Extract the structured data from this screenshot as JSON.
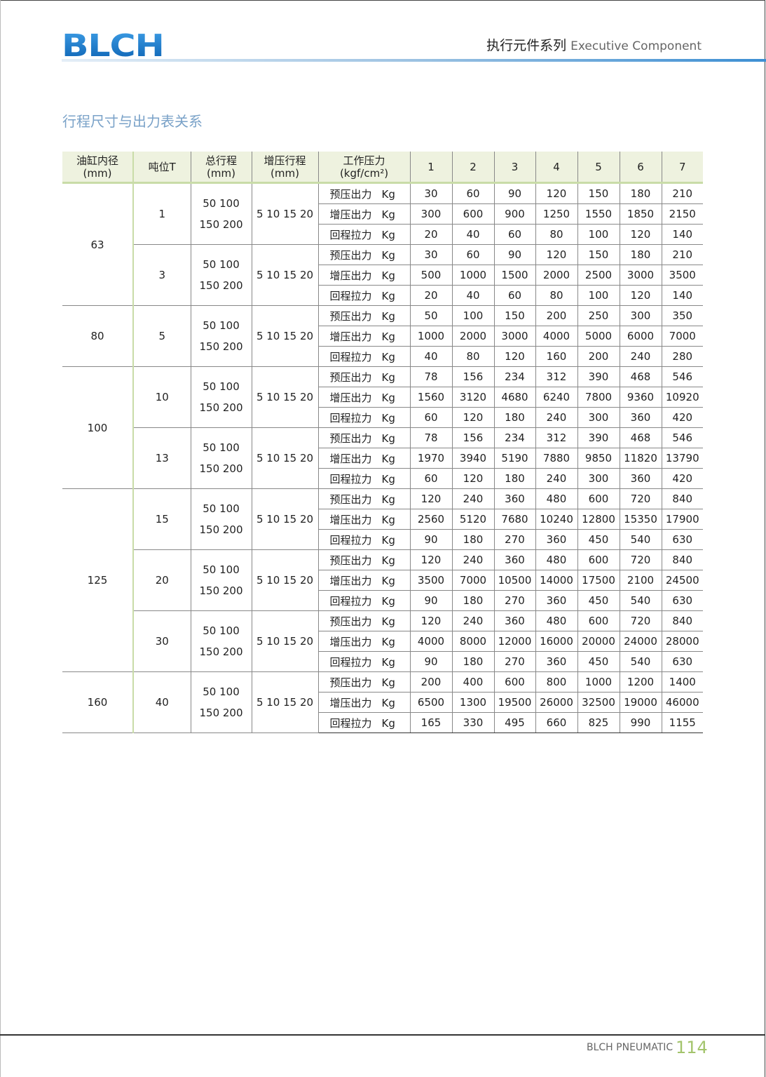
{
  "header": {
    "logo_text": "BLCH",
    "title_cn": "执行元件系列",
    "title_en": "Executive Component"
  },
  "section_title": "行程尺寸与出力表关系",
  "table": {
    "headers": [
      {
        "line1": "油缸内径",
        "line2": "(mm)"
      },
      {
        "line1": "吨位T",
        "line2": ""
      },
      {
        "line1": "总行程",
        "line2": "(mm)"
      },
      {
        "line1": "增压行程",
        "line2": "(mm)"
      },
      {
        "line1": "工作压力",
        "line2": "(kgf/cm²)"
      },
      {
        "line1": "1"
      },
      {
        "line1": "2"
      },
      {
        "line1": "3"
      },
      {
        "line1": "4"
      },
      {
        "line1": "5"
      },
      {
        "line1": "6"
      },
      {
        "line1": "7"
      }
    ],
    "row_labels": [
      "预压出力",
      "增压出力",
      "回程拉力"
    ],
    "unit": "Kg",
    "groups": [
      {
        "bore": "63",
        "tons": [
          {
            "ton": "1",
            "stroke1": "50 100",
            "stroke2": "150 200",
            "boost": "5 10 15 20",
            "rows": [
              [
                "30",
                "60",
                "90",
                "120",
                "150",
                "180",
                "210"
              ],
              [
                "300",
                "600",
                "900",
                "1250",
                "1550",
                "1850",
                "2150"
              ],
              [
                "20",
                "40",
                "60",
                "80",
                "100",
                "120",
                "140"
              ]
            ]
          },
          {
            "ton": "3",
            "stroke1": "50 100",
            "stroke2": "150 200",
            "boost": "5 10 15 20",
            "rows": [
              [
                "30",
                "60",
                "90",
                "120",
                "150",
                "180",
                "210"
              ],
              [
                "500",
                "1000",
                "1500",
                "2000",
                "2500",
                "3000",
                "3500"
              ],
              [
                "20",
                "40",
                "60",
                "80",
                "100",
                "120",
                "140"
              ]
            ]
          }
        ]
      },
      {
        "bore": "80",
        "tons": [
          {
            "ton": "5",
            "stroke1": "50 100",
            "stroke2": "150 200",
            "boost": "5 10 15 20",
            "rows": [
              [
                "50",
                "100",
                "150",
                "200",
                "250",
                "300",
                "350"
              ],
              [
                "1000",
                "2000",
                "3000",
                "4000",
                "5000",
                "6000",
                "7000"
              ],
              [
                "40",
                "80",
                "120",
                "160",
                "200",
                "240",
                "280"
              ]
            ]
          }
        ]
      },
      {
        "bore": "100",
        "tons": [
          {
            "ton": "10",
            "stroke1": "50 100",
            "stroke2": "150 200",
            "boost": "5 10 15 20",
            "rows": [
              [
                "78",
                "156",
                "234",
                "312",
                "390",
                "468",
                "546"
              ],
              [
                "1560",
                "3120",
                "4680",
                "6240",
                "7800",
                "9360",
                "10920"
              ],
              [
                "60",
                "120",
                "180",
                "240",
                "300",
                "360",
                "420"
              ]
            ]
          },
          {
            "ton": "13",
            "stroke1": "50 100",
            "stroke2": "150 200",
            "boost": "5 10 15 20",
            "rows": [
              [
                "78",
                "156",
                "234",
                "312",
                "390",
                "468",
                "546"
              ],
              [
                "1970",
                "3940",
                "5190",
                "7880",
                "9850",
                "11820",
                "13790"
              ],
              [
                "60",
                "120",
                "180",
                "240",
                "300",
                "360",
                "420"
              ]
            ]
          }
        ]
      },
      {
        "bore": "125",
        "tons": [
          {
            "ton": "15",
            "stroke1": "50 100",
            "stroke2": "150 200",
            "boost": "5 10 15 20",
            "rows": [
              [
                "120",
                "240",
                "360",
                "480",
                "600",
                "720",
                "840"
              ],
              [
                "2560",
                "5120",
                "7680",
                "10240",
                "12800",
                "15350",
                "17900"
              ],
              [
                "90",
                "180",
                "270",
                "360",
                "450",
                "540",
                "630"
              ]
            ]
          },
          {
            "ton": "20",
            "stroke1": "50 100",
            "stroke2": "150 200",
            "boost": "5 10 15 20",
            "rows": [
              [
                "120",
                "240",
                "360",
                "480",
                "600",
                "720",
                "840"
              ],
              [
                "3500",
                "7000",
                "10500",
                "14000",
                "17500",
                "2100",
                "24500"
              ],
              [
                "90",
                "180",
                "270",
                "360",
                "450",
                "540",
                "630"
              ]
            ]
          },
          {
            "ton": "30",
            "stroke1": "50 100",
            "stroke2": "150 200",
            "boost": "5 10 15 20",
            "rows": [
              [
                "120",
                "240",
                "360",
                "480",
                "600",
                "720",
                "840"
              ],
              [
                "4000",
                "8000",
                "12000",
                "16000",
                "20000",
                "24000",
                "28000"
              ],
              [
                "90",
                "180",
                "270",
                "360",
                "450",
                "540",
                "630"
              ]
            ]
          }
        ]
      },
      {
        "bore": "160",
        "tons": [
          {
            "ton": "40",
            "stroke1": "50 100",
            "stroke2": "150 200",
            "boost": "5 10 15 20",
            "rows": [
              [
                "200",
                "400",
                "600",
                "800",
                "1000",
                "1200",
                "1400"
              ],
              [
                "6500",
                "1300",
                "19500",
                "26000",
                "32500",
                "19000",
                "46000"
              ],
              [
                "165",
                "330",
                "495",
                "660",
                "825",
                "990",
                "1155"
              ]
            ]
          }
        ]
      }
    ]
  },
  "footer": {
    "brand": "BLCH PNEUMATIC",
    "page_number": "114"
  },
  "colors": {
    "accent_blue": "#3d8fd3",
    "accent_green": "#a3c46c",
    "header_bg": "#eef2df"
  }
}
